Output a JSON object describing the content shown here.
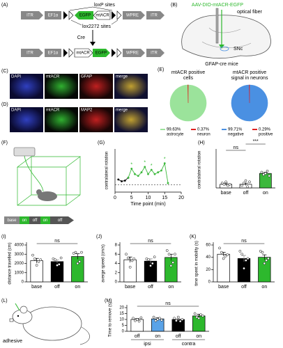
{
  "panel_labels": [
    "(A)",
    "(B)",
    "(C)",
    "(D)",
    "(E)",
    "(F)",
    "(G)",
    "(H)",
    "(I)",
    "(J)",
    "(K)",
    "(L)",
    "(M)"
  ],
  "diagram_a": {
    "top": [
      "ITR",
      "EF1α",
      "EGFP",
      "mtACR",
      "WPRE",
      "ITR"
    ],
    "loxp": "loxP sites",
    "lox2272": "lox2272 sites",
    "cre": "Cre",
    "bottom": [
      "ITR",
      "EF1α",
      "mtACR",
      "EGFP",
      "WPRE",
      "ITR"
    ]
  },
  "diagram_b": {
    "virus": "AAV-DIO-mtACR-EGFP",
    "fiber": "optical fiber",
    "region": "SNc",
    "mouse": "GFAP-cre mice"
  },
  "images_c": [
    "DAPI",
    "mtACR",
    "GFAP",
    "merge"
  ],
  "images_d": [
    "DAPI",
    "mtACR",
    "MAP2",
    "merge"
  ],
  "diagram_f": [
    "base",
    "on",
    "off",
    "on",
    "off"
  ],
  "diagram_l": "adhesive",
  "chart_data": [
    {
      "type": "pie",
      "title": [
        "mtACR positive",
        "cells"
      ],
      "categories": [
        "astrocyte",
        "neuron"
      ],
      "values": [
        99.63,
        0.37
      ],
      "value_labels": [
        "99.63%",
        "0.37%"
      ],
      "colors": [
        "#9be39b",
        "#e02020"
      ]
    },
    {
      "type": "pie",
      "title": [
        "mtACR positive",
        "signal in neurons"
      ],
      "categories": [
        "negative",
        "positive"
      ],
      "values": [
        99.71,
        0.29
      ],
      "value_labels": [
        "99.71%",
        "0.29%"
      ],
      "colors": [
        "#4a90e2",
        "#e02020"
      ]
    },
    {
      "type": "line",
      "xlabel": "Time point (min)",
      "ylabel": "contralateral rotation",
      "x": [
        1,
        2,
        3,
        4,
        5,
        6,
        7,
        8,
        9,
        10,
        11,
        12,
        13,
        14,
        15,
        16
      ],
      "series": [
        {
          "color": "#000000",
          "values": [
            0.15,
            0.1,
            0.12,
            0.2,
            null,
            null,
            null,
            null,
            null,
            null,
            null,
            null,
            null,
            null,
            null,
            null
          ]
        },
        {
          "color": "#3cb83c",
          "values": [
            null,
            null,
            null,
            0.2,
            0.45,
            0.3,
            0.25,
            0.35,
            0.5,
            0.3,
            0.42,
            0.3,
            0.35,
            0.4,
            0.6,
            0.05
          ]
        }
      ],
      "significance": [
        {
          "index": 4,
          "label": "*"
        },
        {
          "index": 8,
          "label": "*"
        },
        {
          "index": 10,
          "label": "*"
        },
        {
          "index": 14,
          "label": "*"
        }
      ],
      "xlim": [
        0,
        20
      ],
      "xticks": [
        0,
        5,
        10,
        15,
        20
      ],
      "ylim": [
        -0.2,
        1
      ]
    },
    {
      "type": "bar",
      "ylabel": "contralateral rotation",
      "categories": [
        "base",
        "off",
        "on"
      ],
      "values": [
        0.03,
        0.03,
        0.12
      ],
      "errors": [
        0.01,
        0.01,
        0.01
      ],
      "colors": [
        "#ffffff",
        "#ffffff",
        "#3cb83c"
      ],
      "points": [
        [
          0.04,
          0.03,
          0.05,
          0.02,
          0.03
        ],
        [
          0.02,
          0.04,
          0.06,
          0.01,
          0.05
        ],
        [
          0.13,
          0.11,
          0.12,
          0.14,
          0.1
        ]
      ],
      "significance": [
        {
          "categories": [
            0,
            1
          ],
          "label": "ns"
        },
        {
          "categories": [
            1,
            2
          ],
          "label": "***"
        }
      ],
      "ylim": [
        0,
        0.3
      ]
    },
    {
      "type": "bar",
      "ylabel": "distance travelled (cm)",
      "categories": [
        "base",
        "off",
        "on"
      ],
      "values": [
        2300,
        2200,
        2750
      ],
      "errors": [
        250,
        200,
        300
      ],
      "colors": [
        "#ffffff",
        "#000000",
        "#2db82d"
      ],
      "points": [
        [
          2900,
          2500,
          1800,
          2200,
          2400
        ],
        [
          2500,
          2400,
          1800,
          1900,
          2600
        ],
        [
          3100,
          3200,
          2000,
          2200,
          3200
        ]
      ],
      "significance": [
        {
          "categories": [
            0,
            2
          ],
          "label": "ns"
        }
      ],
      "ylim": [
        0,
        4000
      ],
      "yticks": [
        0,
        1000,
        2000,
        3000,
        4000
      ]
    },
    {
      "type": "bar",
      "ylabel": "averge speed (cm/s)",
      "categories": [
        "base",
        "off",
        "on"
      ],
      "values": [
        4.8,
        4.5,
        5.3
      ],
      "errors": [
        0.6,
        0.5,
        0.7
      ],
      "colors": [
        "#ffffff",
        "#000000",
        "#2db82d"
      ],
      "points": [
        [
          6,
          5.2,
          3.2,
          4.6,
          5
        ],
        [
          5,
          4.8,
          3.5,
          4,
          5.4
        ],
        [
          6.8,
          6,
          3.5,
          4.2,
          6
        ]
      ],
      "significance": [
        {
          "categories": [
            0,
            2
          ],
          "label": "ns"
        }
      ],
      "ylim": [
        0,
        8
      ],
      "yticks": [
        0,
        2,
        4,
        6,
        8
      ]
    },
    {
      "type": "bar",
      "ylabel": "time spent in mobility (s)",
      "categories": [
        "base",
        "off",
        "on"
      ],
      "values": [
        45,
        38,
        40
      ],
      "errors": [
        3,
        5,
        4
      ],
      "colors": [
        "#ffffff",
        "#000000",
        "#2db82d"
      ],
      "points": [
        [
          55,
          48,
          38,
          42,
          44
        ],
        [
          50,
          45,
          22,
          35,
          38
        ],
        [
          50,
          48,
          30,
          35,
          38
        ]
      ],
      "significance": [
        {
          "categories": [
            0,
            2
          ],
          "label": "ns"
        }
      ],
      "ylim": [
        0,
        60
      ],
      "yticks": [
        0,
        20,
        40,
        60
      ]
    },
    {
      "type": "bar",
      "ylabel": "Time to remove (s)",
      "categories": [
        "off",
        "on",
        "off",
        "on"
      ],
      "values": [
        10,
        10.5,
        10,
        13
      ],
      "errors": [
        0.8,
        1,
        1,
        1.5
      ],
      "colors": [
        "#ffffff",
        "#5aa3e8",
        "#000000",
        "#2db82d"
      ],
      "points": [
        [
          11,
          9,
          10,
          8.5,
          11.5
        ],
        [
          12,
          9,
          10,
          11,
          9.5
        ],
        [
          11,
          9,
          12,
          8.5,
          10
        ],
        [
          15,
          12,
          11,
          14,
          13
        ]
      ],
      "groups": [
        {
          "label": "ipsi",
          "categories": [
            0,
            1
          ]
        },
        {
          "label": "contra",
          "categories": [
            2,
            3
          ]
        }
      ],
      "significance": [
        {
          "categories": [
            0,
            3
          ],
          "label": "ns"
        }
      ],
      "ylim": [
        0,
        20
      ],
      "yticks": [
        0,
        5,
        10,
        15,
        20
      ]
    }
  ]
}
